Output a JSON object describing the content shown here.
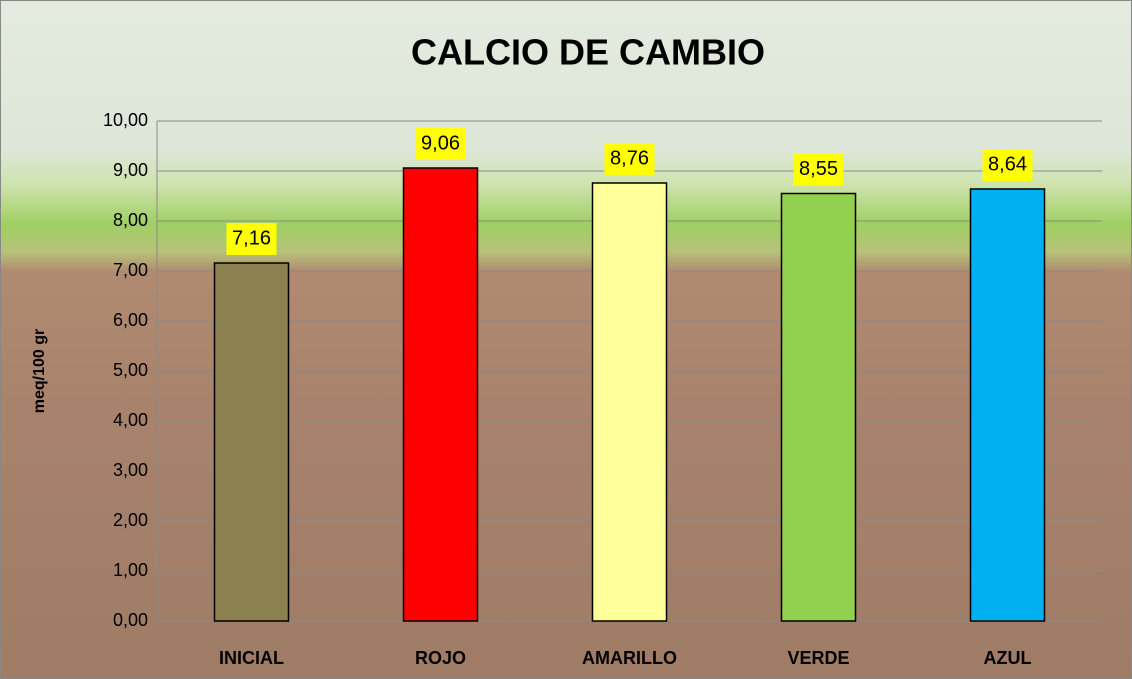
{
  "chart_data": {
    "type": "bar",
    "title": "CALCIO DE CAMBIO",
    "y_label": "meq/100 gr",
    "categories": [
      "INICIAL",
      "ROJO",
      "AMARILLO",
      "VERDE",
      "AZUL"
    ],
    "values": [
      7.16,
      9.06,
      8.76,
      8.55,
      8.64
    ],
    "value_labels": [
      "7,16",
      "9,06",
      "8,76",
      "8,55",
      "8,64"
    ],
    "colors": [
      "#8b8150",
      "#ff0000",
      "#ffff99",
      "#92d050",
      "#00b0f0"
    ],
    "ylim": [
      0,
      10
    ],
    "yticks": [
      {
        "value": 0,
        "label": "0,00"
      },
      {
        "value": 1,
        "label": "1,00"
      },
      {
        "value": 2,
        "label": "2,00"
      },
      {
        "value": 3,
        "label": "3,00"
      },
      {
        "value": 4,
        "label": "4,00"
      },
      {
        "value": 5,
        "label": "5,00"
      },
      {
        "value": 6,
        "label": "6,00"
      },
      {
        "value": 7,
        "label": "7,00"
      },
      {
        "value": 8,
        "label": "8,00"
      },
      {
        "value": 9,
        "label": "9,00"
      },
      {
        "value": 10,
        "label": "10,00"
      }
    ],
    "grid": true
  }
}
